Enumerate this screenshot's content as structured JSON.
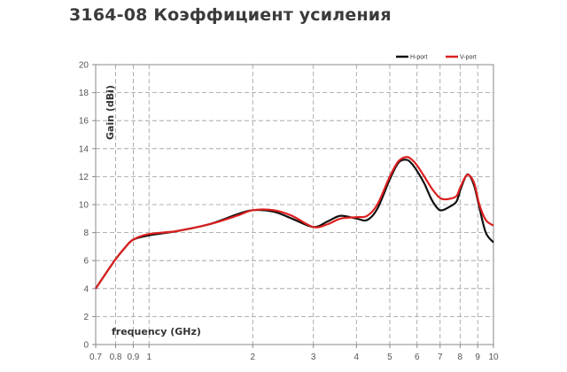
{
  "page": {
    "title": "3164-08 Коэффициент усиления"
  },
  "chart_data": {
    "type": "line",
    "title": "",
    "xlabel": "frequency (GHz)",
    "ylabel": "Gain (dBi)",
    "x_scale": "log",
    "xlim": [
      0.7,
      10
    ],
    "ylim": [
      0,
      20
    ],
    "grid": true,
    "legend_position": "top-right",
    "x_ticks": [
      {
        "value": 0.7,
        "label": "0.7"
      },
      {
        "value": 0.8,
        "label": "0.8"
      },
      {
        "value": 0.9,
        "label": "0.9"
      },
      {
        "value": 1,
        "label": "1"
      },
      {
        "value": 2,
        "label": "2"
      },
      {
        "value": 3,
        "label": "3"
      },
      {
        "value": 4,
        "label": "4"
      },
      {
        "value": 5,
        "label": "5"
      },
      {
        "value": 6,
        "label": "6"
      },
      {
        "value": 7,
        "label": "7"
      },
      {
        "value": 8,
        "label": "8"
      },
      {
        "value": 9,
        "label": "9"
      },
      {
        "value": 10,
        "label": "10"
      }
    ],
    "y_ticks": [
      0,
      2,
      4,
      6,
      8,
      10,
      12,
      14,
      16,
      18,
      20
    ],
    "series": [
      {
        "name": "H-port",
        "color": "#111111",
        "x": [
          0.7,
          0.75,
          0.8,
          0.85,
          0.9,
          1.0,
          1.2,
          1.5,
          1.8,
          2.0,
          2.3,
          2.6,
          3.0,
          3.3,
          3.6,
          4.0,
          4.3,
          4.6,
          5.0,
          5.3,
          5.6,
          5.8,
          6.0,
          6.3,
          6.6,
          6.9,
          7.1,
          7.4,
          7.8,
          8.0,
          8.3,
          8.5,
          8.8,
          9.1,
          9.5,
          10.0
        ],
        "values": [
          4.0,
          5.1,
          6.1,
          6.9,
          7.5,
          7.8,
          8.1,
          8.6,
          9.3,
          9.6,
          9.5,
          9.0,
          8.4,
          8.8,
          9.2,
          9.0,
          8.9,
          9.7,
          11.8,
          13.0,
          13.2,
          12.9,
          12.4,
          11.5,
          10.4,
          9.7,
          9.6,
          9.8,
          10.2,
          11.0,
          12.0,
          12.1,
          11.3,
          9.8,
          8.0,
          7.3
        ]
      },
      {
        "name": "V-port",
        "color": "#dd1f1f",
        "x": [
          0.7,
          0.75,
          0.8,
          0.85,
          0.9,
          1.0,
          1.2,
          1.5,
          1.8,
          2.0,
          2.3,
          2.6,
          3.0,
          3.3,
          3.6,
          4.0,
          4.3,
          4.6,
          5.0,
          5.3,
          5.6,
          5.8,
          6.0,
          6.3,
          6.6,
          6.9,
          7.1,
          7.4,
          7.8,
          8.0,
          8.3,
          8.5,
          8.8,
          9.1,
          9.5,
          10.0
        ],
        "values": [
          4.0,
          5.1,
          6.1,
          6.9,
          7.5,
          7.9,
          8.1,
          8.6,
          9.2,
          9.6,
          9.6,
          9.2,
          8.4,
          8.6,
          9.0,
          9.1,
          9.2,
          10.0,
          12.0,
          13.1,
          13.4,
          13.2,
          12.8,
          12.0,
          11.2,
          10.6,
          10.4,
          10.4,
          10.6,
          11.2,
          12.0,
          12.1,
          11.5,
          10.0,
          8.9,
          8.5
        ]
      }
    ]
  }
}
